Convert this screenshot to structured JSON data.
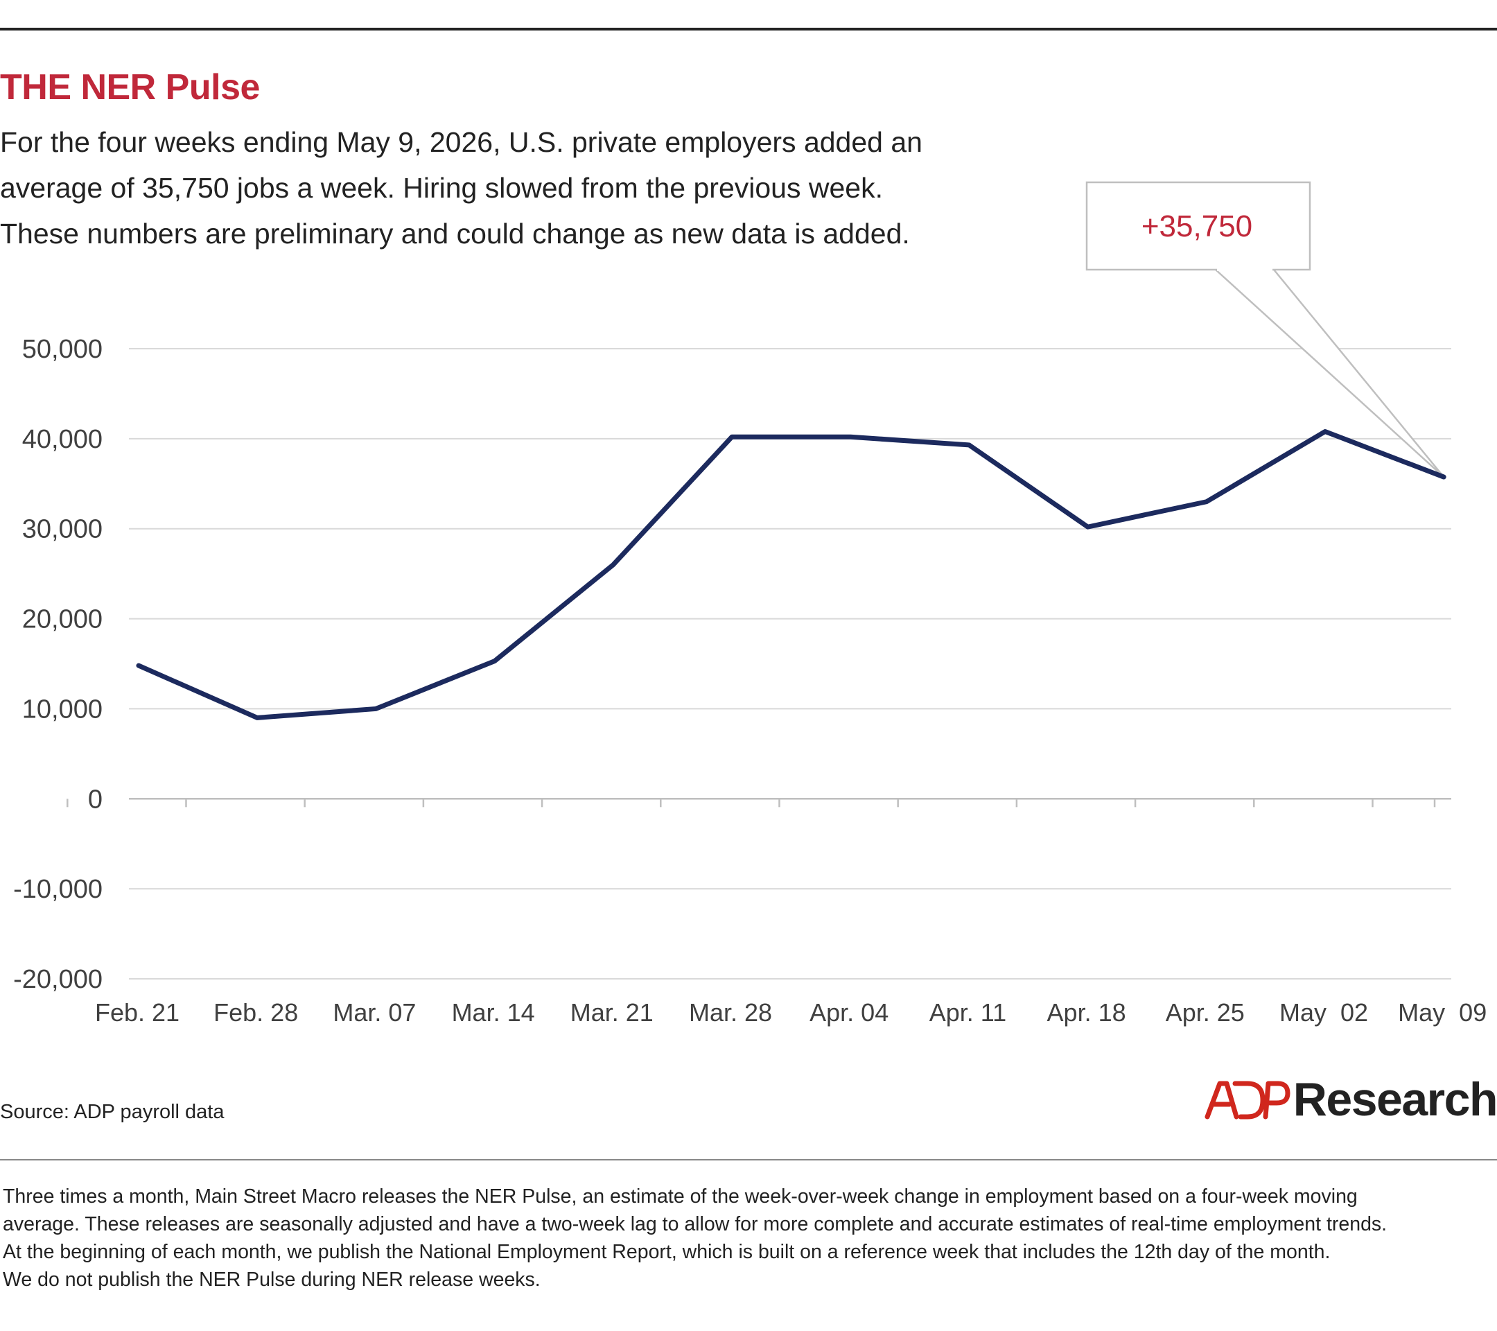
{
  "header": {
    "title": "THE NER Pulse",
    "subtitle_lines": [
      "For the four weeks ending May 9, 2026, U.S. private employers added an",
      "average of 35,750 jobs a week. Hiring slowed  from the previous week.",
      "These numbers are preliminary and could change as new data is added."
    ]
  },
  "colors": {
    "title": "#c0283a",
    "line": "#1c2a5e",
    "grid": "#d9d9d9",
    "callout_border": "#bfbfbf",
    "callout_text": "#c0283a"
  },
  "chart_data": {
    "type": "line",
    "categories": [
      "Feb. 21",
      "Feb. 28",
      "Mar. 07",
      "Mar. 14",
      "Mar. 21",
      "Mar. 28",
      "Apr. 04",
      "Apr. 11",
      "Apr. 18",
      "Apr. 25",
      "May  02",
      "May  09"
    ],
    "series": [
      {
        "values": [
          14800,
          9000,
          10000,
          15300,
          26000,
          40200,
          40200,
          39300,
          30200,
          33000,
          40800,
          35750
        ]
      }
    ],
    "ylim": [
      -20000,
      50000
    ],
    "yticks": [
      50000,
      40000,
      30000,
      20000,
      10000,
      0,
      -10000,
      -20000
    ],
    "ytick_labels": [
      "50,000",
      "40,000",
      "30,000",
      "20,000",
      "10,000",
      "0",
      "-10,000",
      "-20,000"
    ],
    "grid": true,
    "callout": {
      "label": "+35,750",
      "point_index": 11
    }
  },
  "footer": {
    "source": "Source: ADP payroll data",
    "brand_logo": "ADP",
    "brand_text": "Research",
    "note_lines": [
      "Three times a month, Main Street Macro releases the NER Pulse, an estimate of the week-over-week change in employment based on a four-week moving",
      "average. These releases are seasonally adjusted and have a two-week lag to allow for more complete and accurate estimates of real-time employment trends.",
      "At the beginning of each month, we publish the National Employment Report, which is built on a reference week that includes the 12th day of the month.",
      "We do not publish the NER Pulse during NER release weeks."
    ]
  }
}
